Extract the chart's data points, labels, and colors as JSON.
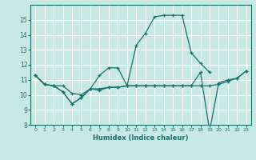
{
  "xlabel": "Humidex (Indice chaleur)",
  "xlim": [
    -0.5,
    23.5
  ],
  "ylim": [
    8,
    16
  ],
  "yticks": [
    8,
    9,
    10,
    11,
    12,
    13,
    14,
    15
  ],
  "xticks": [
    0,
    1,
    2,
    3,
    4,
    5,
    6,
    7,
    8,
    9,
    10,
    11,
    12,
    13,
    14,
    15,
    16,
    17,
    18,
    19,
    20,
    21,
    22,
    23
  ],
  "background_color": "#c8e8e4",
  "grid_color": "#ffffff",
  "line_color": "#1a7068",
  "lines": [
    {
      "x": [
        0,
        1,
        2,
        3,
        4,
        5,
        6,
        7,
        8,
        9,
        10,
        11,
        12,
        13,
        14,
        15,
        16,
        17,
        18,
        19
      ],
      "y": [
        11.3,
        10.7,
        10.6,
        10.2,
        9.4,
        9.8,
        10.4,
        11.3,
        11.8,
        11.8,
        10.6,
        13.3,
        14.1,
        15.2,
        15.3,
        15.3,
        15.3,
        12.8,
        12.1,
        11.5
      ]
    },
    {
      "x": [
        0,
        1,
        2,
        3,
        4,
        5,
        6,
        7,
        8,
        9,
        10,
        11,
        12,
        13,
        14,
        15,
        16,
        17,
        18,
        19,
        20,
        21,
        22,
        23
      ],
      "y": [
        11.3,
        10.7,
        10.6,
        10.6,
        10.1,
        10.0,
        10.4,
        10.4,
        10.5,
        10.5,
        10.6,
        10.6,
        10.6,
        10.6,
        10.6,
        10.6,
        10.6,
        10.6,
        10.6,
        10.6,
        10.7,
        10.9,
        11.1,
        11.6
      ]
    },
    {
      "x": [
        0,
        1,
        2,
        3,
        4,
        5,
        6,
        7,
        8,
        9,
        10,
        11,
        12,
        13,
        14,
        15,
        16,
        17,
        18,
        19,
        20,
        21,
        22,
        23
      ],
      "y": [
        11.3,
        10.7,
        10.6,
        10.2,
        9.4,
        9.8,
        10.4,
        10.3,
        10.5,
        10.5,
        10.6,
        10.6,
        10.6,
        10.6,
        10.6,
        10.6,
        10.6,
        10.6,
        11.5,
        7.6,
        10.8,
        11.0,
        11.1,
        11.6
      ]
    }
  ]
}
